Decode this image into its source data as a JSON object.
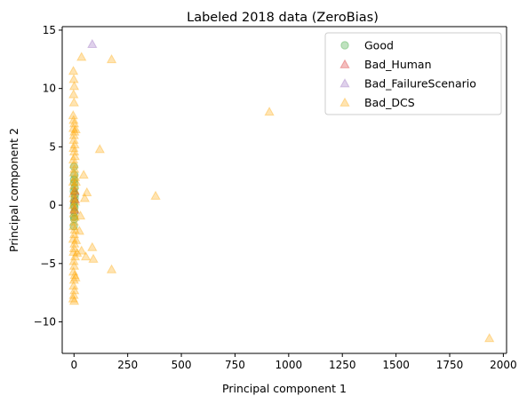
{
  "chart_data": {
    "type": "scatter",
    "title": "Labeled 2018 data (ZeroBias)",
    "xlabel": "Principal component 1",
    "ylabel": "Principal component 2",
    "xlim": [
      -55,
      2015
    ],
    "ylim": [
      -12.7,
      15.3
    ],
    "xticks": [
      0,
      250,
      500,
      750,
      1000,
      1250,
      1500,
      1750,
      2000
    ],
    "yticks": [
      -10,
      -5,
      0,
      5,
      10,
      15
    ],
    "grid": false,
    "legend_position": "top-right",
    "series": [
      {
        "name": "Good",
        "marker": "circle",
        "color": "#2ca02c",
        "points": [
          [
            0,
            3.3
          ],
          [
            2,
            2.6
          ],
          [
            1,
            1.9
          ],
          [
            -1,
            1.2
          ],
          [
            3,
            0.6
          ],
          [
            0,
            0.0
          ],
          [
            2,
            -0.6
          ],
          [
            1,
            -1.2
          ],
          [
            -1,
            -1.8
          ],
          [
            0,
            2.2
          ],
          [
            3,
            1.5
          ],
          [
            1,
            0.3
          ],
          [
            2,
            -0.2
          ],
          [
            0,
            -1.0
          ],
          [
            4,
            0.9
          ]
        ]
      },
      {
        "name": "Bad_Human",
        "marker": "triangle",
        "color": "#d62728",
        "points": [
          [
            3,
            1.2
          ],
          [
            5,
            0.5
          ],
          [
            2,
            -0.4
          ]
        ]
      },
      {
        "name": "Bad_FailureScenario",
        "marker": "triangle",
        "color": "#9467bd",
        "points": [
          [
            85,
            13.8
          ]
        ]
      },
      {
        "name": "Bad_DCS",
        "marker": "triangle",
        "color": "#ffa500",
        "points": [
          [
            -3,
            11.5
          ],
          [
            -1,
            10.8
          ],
          [
            1,
            10.2
          ],
          [
            -2,
            9.5
          ],
          [
            0,
            8.8
          ],
          [
            -4,
            7.7
          ],
          [
            -2,
            7.3
          ],
          [
            1,
            7.0
          ],
          [
            -3,
            6.6
          ],
          [
            2,
            6.3
          ],
          [
            0,
            6.0
          ],
          [
            -1,
            5.6
          ],
          [
            3,
            5.2
          ],
          [
            -2,
            4.9
          ],
          [
            1,
            4.6
          ],
          [
            4,
            4.2
          ],
          [
            -3,
            3.9
          ],
          [
            0,
            3.5
          ],
          [
            2,
            3.1
          ],
          [
            -1,
            2.8
          ],
          [
            5,
            2.4
          ],
          [
            -4,
            2.0
          ],
          [
            1,
            1.7
          ],
          [
            3,
            1.3
          ],
          [
            -2,
            1.0
          ],
          [
            0,
            0.6
          ],
          [
            6,
            0.3
          ],
          [
            -3,
            0.0
          ],
          [
            2,
            -0.3
          ],
          [
            -1,
            -0.7
          ],
          [
            4,
            -1.0
          ],
          [
            0,
            -1.4
          ],
          [
            -2,
            -1.8
          ],
          [
            3,
            -2.1
          ],
          [
            1,
            -2.5
          ],
          [
            -4,
            -2.9
          ],
          [
            2,
            -3.3
          ],
          [
            0,
            -3.7
          ],
          [
            -2,
            -4.0
          ],
          [
            5,
            -4.4
          ],
          [
            -1,
            -4.8
          ],
          [
            1,
            -5.2
          ],
          [
            -3,
            -5.7
          ],
          [
            3,
            -6.0
          ],
          [
            0,
            -6.4
          ],
          [
            -2,
            -6.9
          ],
          [
            2,
            -7.3
          ],
          [
            -1,
            -7.7
          ],
          [
            -4,
            -8.0
          ],
          [
            1,
            -8.2
          ],
          [
            8,
            6.5
          ],
          [
            10,
            -3.0
          ],
          [
            9,
            2.0
          ],
          [
            7,
            -6.2
          ],
          [
            35,
            12.7
          ],
          [
            175,
            12.5
          ],
          [
            120,
            4.8
          ],
          [
            45,
            2.6
          ],
          [
            60,
            1.1
          ],
          [
            50,
            0.6
          ],
          [
            30,
            -0.9
          ],
          [
            25,
            -2.2
          ],
          [
            35,
            -3.9
          ],
          [
            55,
            -4.4
          ],
          [
            85,
            -3.6
          ],
          [
            90,
            -4.6
          ],
          [
            15,
            -4.1
          ],
          [
            175,
            -5.5
          ],
          [
            380,
            0.8
          ],
          [
            910,
            8.0
          ],
          [
            1935,
            -11.4
          ]
        ]
      }
    ]
  }
}
